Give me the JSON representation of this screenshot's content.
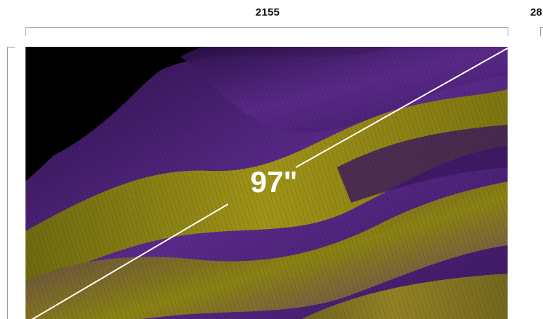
{
  "dimensions": {
    "width_label": "2155",
    "next_width_label": "28",
    "diagonal_label": "97\""
  },
  "colors": {
    "screen_background": "#000000",
    "wave_purple": "#5a2a8a",
    "wave_purple_deep": "#3a165f",
    "wave_olive": "#8a8212",
    "wave_gold": "#a09318",
    "diagonal_line": "#ffffff",
    "bracket": "#9b9b9b"
  },
  "icons": {
    "screen_art": "abstract-flowing-waves-image"
  }
}
